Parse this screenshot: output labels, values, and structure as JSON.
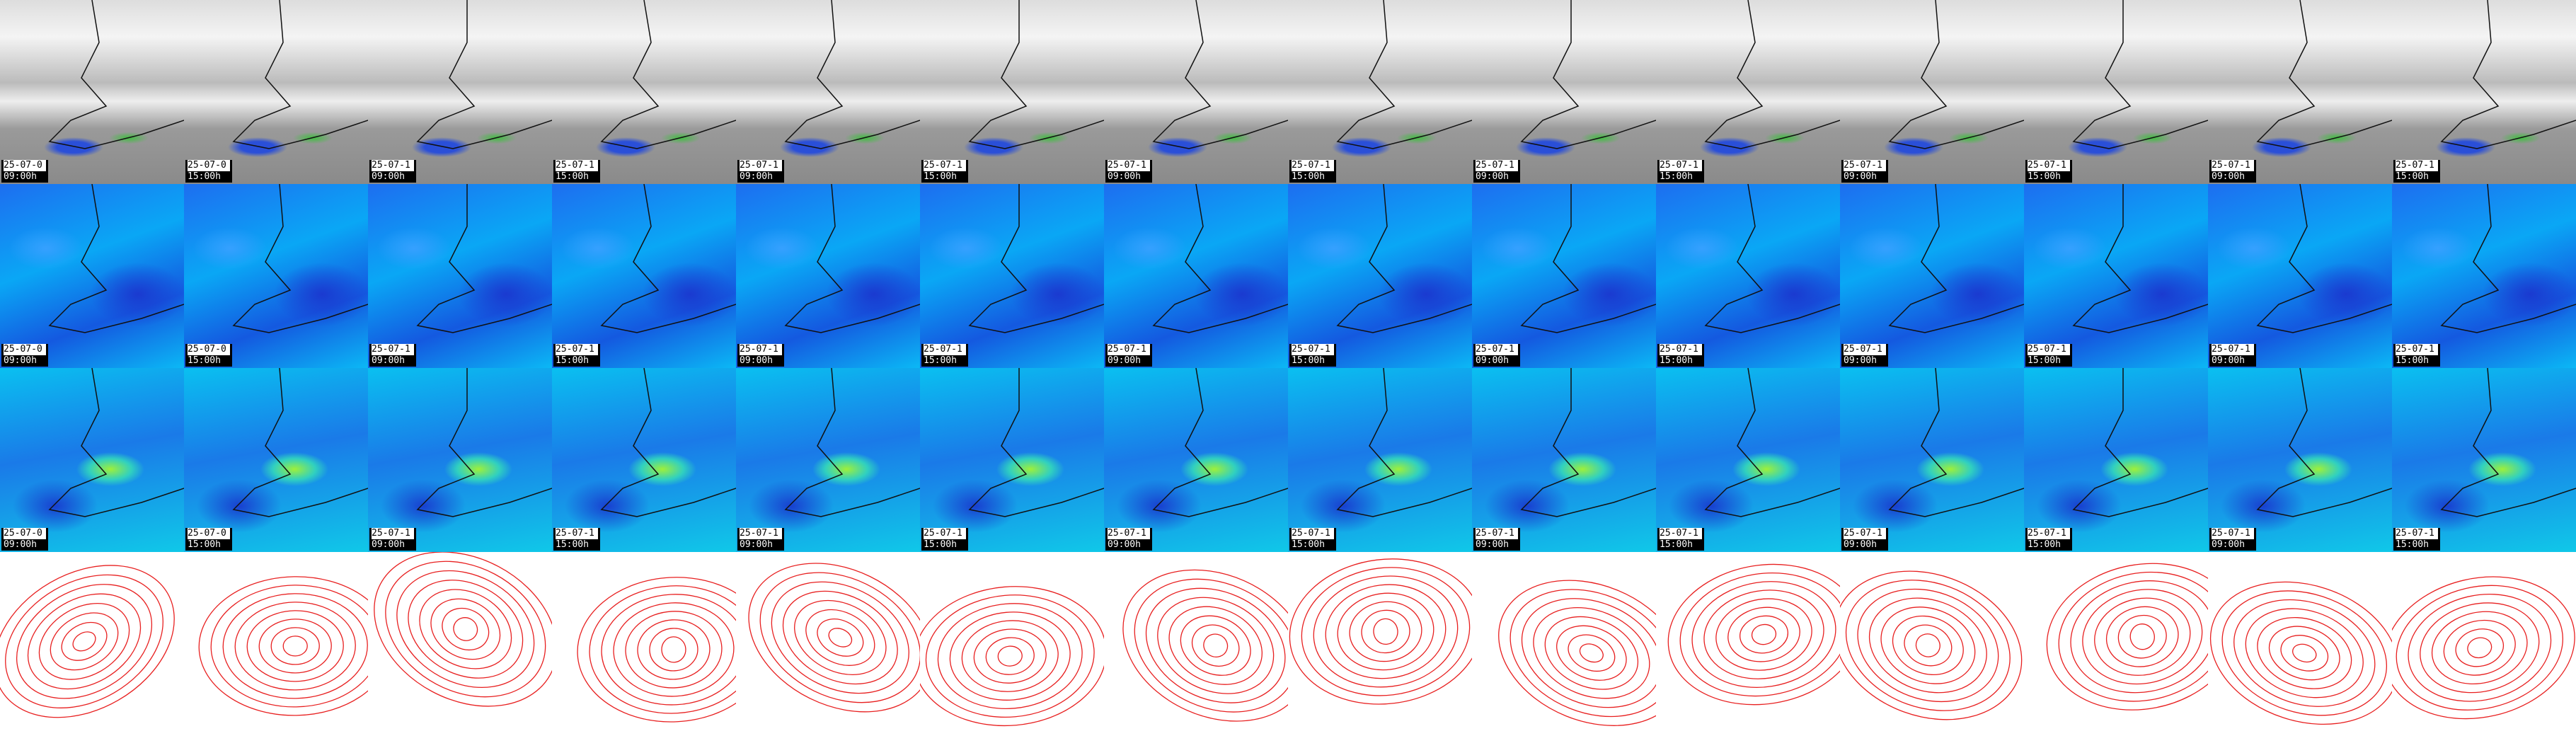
{
  "rows": [
    {
      "tiles": [
        {
          "date": "25-07-0",
          "time": "09:00h"
        },
        {
          "date": "25-07-0",
          "time": "15:00h"
        },
        {
          "date": "25-07-1",
          "time": "09:00h"
        },
        {
          "date": "25-07-1",
          "time": "15:00h"
        },
        {
          "date": "25-07-1",
          "time": "09:00h"
        },
        {
          "date": "25-07-1",
          "time": "15:00h"
        },
        {
          "date": "25-07-1",
          "time": "09:00h"
        },
        {
          "date": "25-07-1",
          "time": "15:00h"
        },
        {
          "date": "25-07-1",
          "time": "09:00h"
        },
        {
          "date": "25-07-1",
          "time": "15:00h"
        },
        {
          "date": "25-07-1",
          "time": "09:00h"
        },
        {
          "date": "25-07-1",
          "time": "15:00h"
        },
        {
          "date": "25-07-1",
          "time": "09:00h"
        },
        {
          "date": "25-07-1",
          "time": "15:00h"
        }
      ]
    },
    {
      "tiles": [
        {
          "date": "25-07-0",
          "time": "09:00h"
        },
        {
          "date": "25-07-0",
          "time": "15:00h"
        },
        {
          "date": "25-07-1",
          "time": "09:00h"
        },
        {
          "date": "25-07-1",
          "time": "15:00h"
        },
        {
          "date": "25-07-1",
          "time": "09:00h"
        },
        {
          "date": "25-07-1",
          "time": "15:00h"
        },
        {
          "date": "25-07-1",
          "time": "09:00h"
        },
        {
          "date": "25-07-1",
          "time": "15:00h"
        },
        {
          "date": "25-07-1",
          "time": "09:00h"
        },
        {
          "date": "25-07-1",
          "time": "15:00h"
        },
        {
          "date": "25-07-1",
          "time": "09:00h"
        },
        {
          "date": "25-07-1",
          "time": "15:00h"
        },
        {
          "date": "25-07-1",
          "time": "09:00h"
        },
        {
          "date": "25-07-1",
          "time": "15:00h"
        }
      ]
    },
    {
      "tiles": [
        {
          "date": "25-07-0",
          "time": "09:00h"
        },
        {
          "date": "25-07-0",
          "time": "15:00h"
        },
        {
          "date": "25-07-1",
          "time": "09:00h"
        },
        {
          "date": "25-07-1",
          "time": "15:00h"
        },
        {
          "date": "25-07-1",
          "time": "09:00h"
        },
        {
          "date": "25-07-1",
          "time": "15:00h"
        },
        {
          "date": "25-07-1",
          "time": "09:00h"
        },
        {
          "date": "25-07-1",
          "time": "15:00h"
        },
        {
          "date": "25-07-1",
          "time": "09:00h"
        },
        {
          "date": "25-07-1",
          "time": "15:00h"
        },
        {
          "date": "25-07-1",
          "time": "09:00h"
        },
        {
          "date": "25-07-1",
          "time": "15:00h"
        },
        {
          "date": "25-07-1",
          "time": "09:00h"
        },
        {
          "date": "25-07-1",
          "time": "15:00h"
        }
      ]
    }
  ]
}
